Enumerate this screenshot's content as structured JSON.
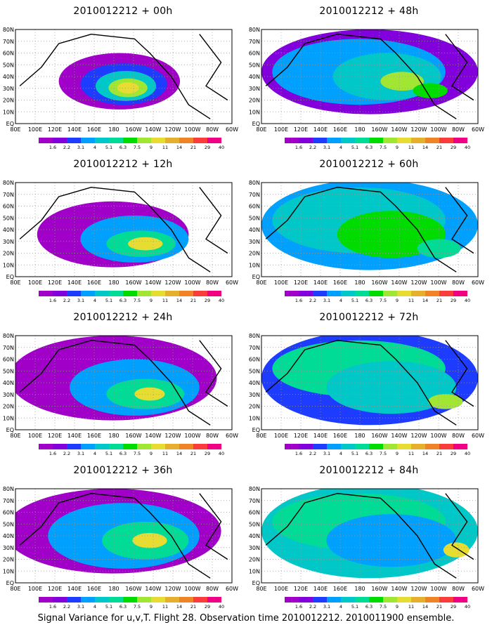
{
  "panels": [
    {
      "title": "2010012212 + 00h"
    },
    {
      "title": "2010012212 + 48h"
    },
    {
      "title": "2010012212 + 12h"
    },
    {
      "title": "2010012212 + 60h"
    },
    {
      "title": "2010012212 + 24h"
    },
    {
      "title": "2010012212 + 72h"
    },
    {
      "title": "2010012212 + 36h"
    },
    {
      "title": "2010012212 + 84h"
    }
  ],
  "footer": "Signal Variance for u,v,T. Flight 28. Observation time 2010012212. 2010011900 ensemble.",
  "chart_data": {
    "type": "heatmap",
    "x_ticks": [
      "80E",
      "100E",
      "120E",
      "140E",
      "160E",
      "180",
      "160W",
      "140W",
      "120W",
      "100W",
      "80W",
      "60W"
    ],
    "y_ticks": [
      "EQ",
      "10N",
      "20N",
      "30N",
      "40N",
      "50N",
      "60N",
      "70N",
      "80N"
    ],
    "colorbar": {
      "levels": [
        "1.6",
        "2.2",
        "3.1",
        "4",
        "5.1",
        "6.3",
        "7.5",
        "9",
        "11",
        "14",
        "21",
        "29",
        "40"
      ],
      "colors": [
        "#a000c8",
        "#8200dc",
        "#1e3cff",
        "#00a0ff",
        "#00c8c8",
        "#00dc96",
        "#00dc00",
        "#a0e632",
        "#e6dc32",
        "#e6af2d",
        "#f08228",
        "#fa3c3c",
        "#f00082"
      ]
    }
  }
}
